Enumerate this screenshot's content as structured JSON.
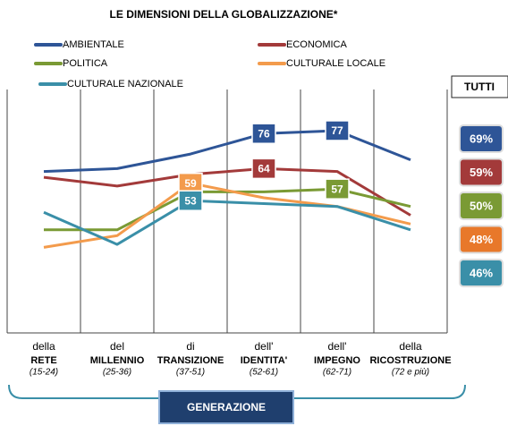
{
  "chart_data": {
    "type": "line",
    "title": "LE DIMENSIONI DELLA GLOBALIZZAZIONE*",
    "categories": [
      "RETE",
      "MILLENNIO",
      "TRANSIZIONE",
      "IDENTITA'",
      "IMPEGNO",
      "RICOSTRUZIONE"
    ],
    "category_prefixes": [
      "della",
      "del",
      "di",
      "dell'",
      "dell'",
      "della"
    ],
    "category_ages": [
      "(15-24)",
      "(25-36)",
      "(37-51)",
      "(52-61)",
      "(62-71)",
      "(72 e più)"
    ],
    "series": [
      {
        "name": "AMBIENTALE",
        "color": "#2e5597",
        "values": [
          63,
          64,
          69,
          76,
          77,
          67
        ],
        "value_labels": [
          null,
          null,
          null,
          "76",
          "77",
          null
        ]
      },
      {
        "name": "ECONOMICA",
        "color": "#a33a3a",
        "values": [
          61,
          58,
          62,
          64,
          63,
          48
        ],
        "value_labels": [
          null,
          null,
          null,
          "64",
          null,
          null
        ]
      },
      {
        "name": "POLITICA",
        "color": "#7a9a34",
        "values": [
          43,
          43,
          56,
          56,
          57,
          51
        ],
        "value_labels": [
          null,
          null,
          null,
          null,
          "57",
          null
        ]
      },
      {
        "name": "CULTURALE LOCALE",
        "color": "#f39b4c",
        "values": [
          37,
          41,
          59,
          54,
          51,
          45
        ],
        "value_labels": [
          null,
          null,
          "59",
          null,
          null,
          null
        ]
      },
      {
        "name": "CULTURALE NAZIONALE",
        "color": "#3a8fa8",
        "values": [
          49,
          38,
          53,
          52,
          51,
          43
        ],
        "value_labels": [
          null,
          null,
          "53",
          null,
          null,
          null
        ]
      }
    ],
    "totals": {
      "title": "TUTTI",
      "values": [
        69,
        59,
        50,
        48,
        46
      ],
      "value_labels": [
        "69%",
        "59%",
        "50%",
        "48%",
        "46%"
      ],
      "colors": [
        "#2e5597",
        "#a33a3a",
        "#7a9a34",
        "#e8782a",
        "#3a8fa8"
      ]
    },
    "x_label": "GENERAZIONE"
  }
}
